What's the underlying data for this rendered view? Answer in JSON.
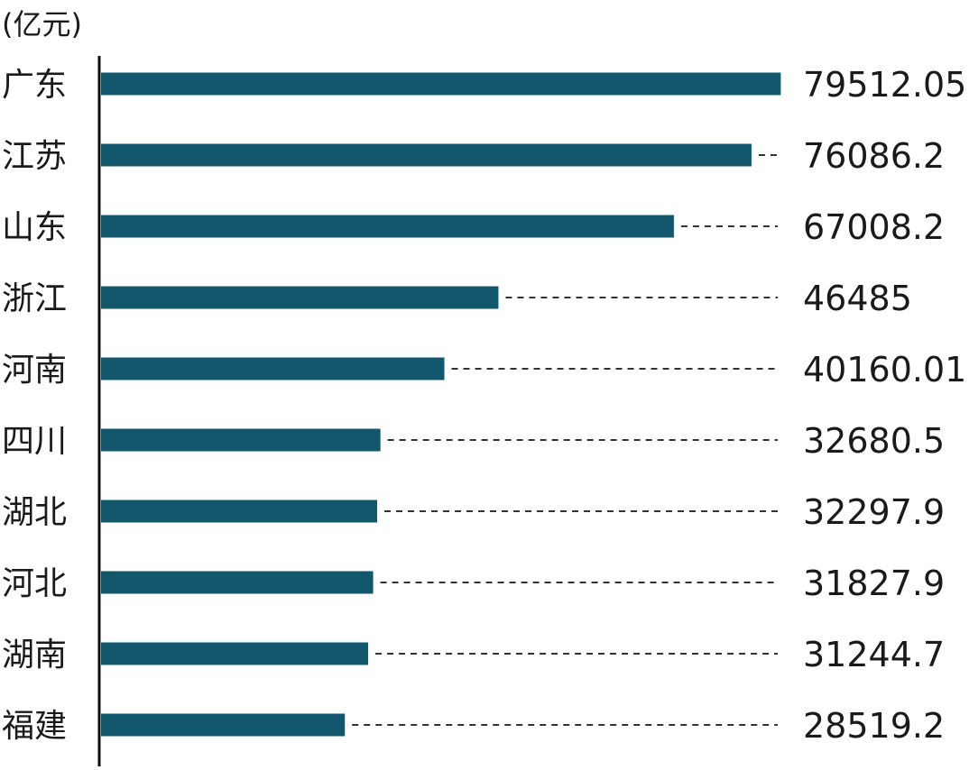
{
  "chart_data": {
    "type": "bar",
    "orientation": "horizontal",
    "unit_label": "(亿元)",
    "categories": [
      "广东",
      "江苏",
      "山东",
      "浙江",
      "河南",
      "四川",
      "湖北",
      "河北",
      "湖南",
      "福建"
    ],
    "values": [
      79512.05,
      76086.2,
      67008.2,
      46485,
      40160.01,
      32680.5,
      32297.9,
      31827.9,
      31244.7,
      28519.2
    ],
    "value_labels": [
      "79512.05",
      "76086.2",
      "67008.2",
      "46485",
      "40160.01",
      "32680.5",
      "32297.9",
      "31827.9",
      "31244.7",
      "28519.2"
    ],
    "xlim": [
      0,
      80000
    ],
    "bar_color": "#13576d",
    "axis_color": "#111111",
    "leader_line_color": "#333333",
    "grid": false,
    "legend": "none"
  }
}
